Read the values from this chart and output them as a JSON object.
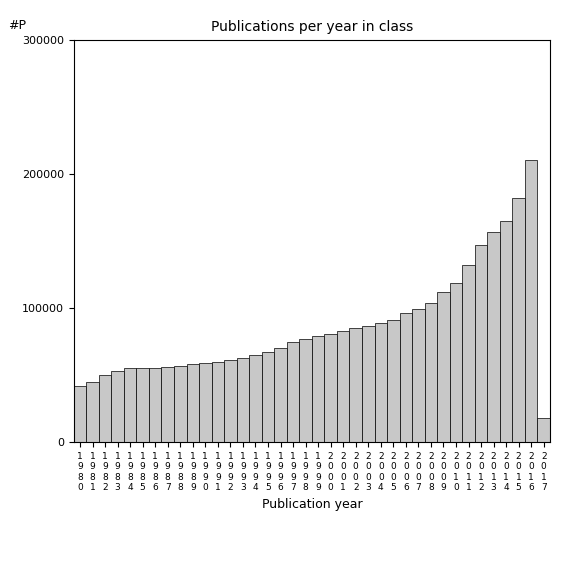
{
  "title": "Publications per year in class",
  "xlabel": "Publication year",
  "ylabel": "#P",
  "bar_color": "#c8c8c8",
  "bar_edge_color": "#000000",
  "background_color": "#ffffff",
  "ylim": [
    0,
    300000
  ],
  "yticks": [
    0,
    100000,
    200000,
    300000
  ],
  "years": [
    1980,
    1981,
    1982,
    1983,
    1984,
    1985,
    1986,
    1987,
    1988,
    1989,
    1990,
    1991,
    1992,
    1993,
    1994,
    1995,
    1996,
    1997,
    1998,
    1999,
    2000,
    2001,
    2002,
    2003,
    2004,
    2005,
    2006,
    2007,
    2008,
    2009,
    2010,
    2011,
    2012,
    2013,
    2014,
    2015,
    2016,
    2017
  ],
  "values": [
    42000,
    45000,
    50000,
    53000,
    55000,
    55000,
    55000,
    56000,
    57000,
    58000,
    59000,
    60000,
    61000,
    63000,
    65000,
    67000,
    70000,
    75000,
    77000,
    79000,
    81000,
    83000,
    85000,
    87000,
    89000,
    91000,
    96000,
    99000,
    104000,
    112000,
    119000,
    132000,
    147000,
    157000,
    165000,
    182000,
    210000,
    18000
  ]
}
